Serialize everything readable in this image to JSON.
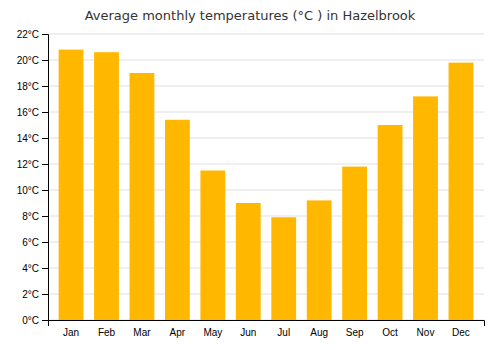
{
  "chart_data": {
    "type": "bar",
    "title": "Average monthly temperatures (°C ) in Hazelbrook",
    "categories": [
      "Jan",
      "Feb",
      "Mar",
      "Apr",
      "May",
      "Jun",
      "Jul",
      "Aug",
      "Sep",
      "Oct",
      "Nov",
      "Dec"
    ],
    "values": [
      20.8,
      20.6,
      19.0,
      15.4,
      11.5,
      9.0,
      7.9,
      9.2,
      11.8,
      15.0,
      17.2,
      19.8
    ],
    "color": "#FFB700",
    "ylim": [
      0,
      22
    ],
    "yticks": [
      {
        "value": 0,
        "label": "0°C"
      },
      {
        "value": 2,
        "label": "2°C"
      },
      {
        "value": 4,
        "label": "4°C"
      },
      {
        "value": 6,
        "label": "6°C"
      },
      {
        "value": 8,
        "label": "8°C"
      },
      {
        "value": 10,
        "label": "10°C"
      },
      {
        "value": 12,
        "label": "12°C"
      },
      {
        "value": 14,
        "label": "14°C"
      },
      {
        "value": 16,
        "label": "16°C"
      },
      {
        "value": 18,
        "label": "18°C"
      },
      {
        "value": 20,
        "label": "20°C"
      },
      {
        "value": 22,
        "label": "22°C"
      }
    ],
    "grid": true
  }
}
